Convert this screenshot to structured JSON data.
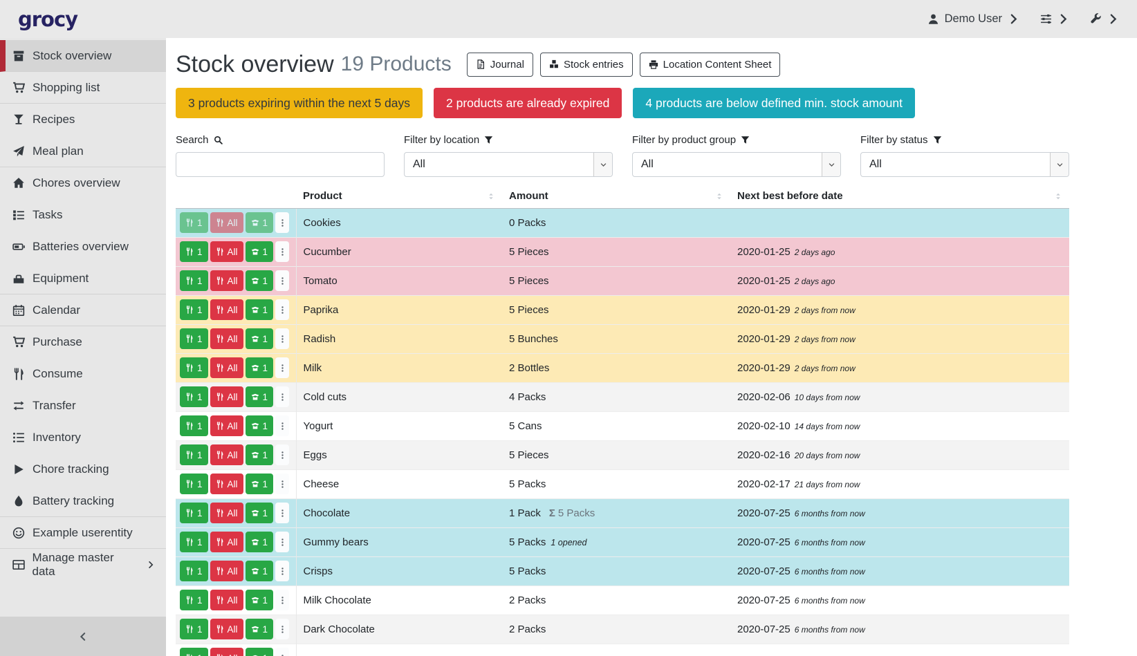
{
  "navbar": {
    "logo": "grocy",
    "user_label": "Demo User"
  },
  "sidebar": {
    "items": [
      {
        "label": "Stock overview",
        "icon": "box",
        "active": true,
        "divider_after": true
      },
      {
        "label": "Shopping list",
        "icon": "cart",
        "divider_after": true
      },
      {
        "label": "Recipes",
        "icon": "glass"
      },
      {
        "label": "Meal plan",
        "icon": "plane",
        "divider_after": true
      },
      {
        "label": "Chores overview",
        "icon": "home"
      },
      {
        "label": "Tasks",
        "icon": "tasks"
      },
      {
        "label": "Batteries overview",
        "icon": "battery"
      },
      {
        "label": "Equipment",
        "icon": "toolbox",
        "divider_after": true
      },
      {
        "label": "Calendar",
        "icon": "calendar",
        "divider_after": true
      },
      {
        "label": "Purchase",
        "icon": "cart"
      },
      {
        "label": "Consume",
        "icon": "utensils"
      },
      {
        "label": "Transfer",
        "icon": "exchange"
      },
      {
        "label": "Inventory",
        "icon": "list"
      },
      {
        "label": "Chore tracking",
        "icon": "play"
      },
      {
        "label": "Battery tracking",
        "icon": "tint",
        "divider_after": true
      },
      {
        "label": "Example userentity",
        "icon": "smile",
        "divider_after": true
      },
      {
        "label": "Manage master data",
        "icon": "table",
        "submenu": true
      }
    ]
  },
  "header": {
    "title": "Stock overview",
    "count_text": "19 Products",
    "buttons": [
      {
        "label": "Journal",
        "icon": "file"
      },
      {
        "label": "Stock entries",
        "icon": "cubes"
      },
      {
        "label": "Location Content Sheet",
        "icon": "print"
      }
    ]
  },
  "alerts": [
    {
      "text": "3 products expiring within the next 5 days",
      "color": "#efb50f"
    },
    {
      "text": "2 products are already expired",
      "color": "#dc3545"
    },
    {
      "text": "4 products are below defined min. stock amount",
      "color": "#1ba8ba"
    }
  ],
  "filters": {
    "search_label": "Search",
    "location_label": "Filter by location",
    "group_label": "Filter by product group",
    "status_label": "Filter by status",
    "all_value": "All",
    "search_value": ""
  },
  "table": {
    "headers": [
      "Product",
      "Amount",
      "Next best before date"
    ],
    "row_buttons": {
      "consume_one": "1",
      "consume_all": "All",
      "open_one": "1"
    },
    "sigma": "Σ",
    "rows": [
      {
        "product": "Cookies",
        "amount": "0 Packs",
        "amount_sum": "",
        "amount_note": "",
        "date": "",
        "timeago": "",
        "status": "belowmin",
        "muted": true
      },
      {
        "product": "Cucumber",
        "amount": "5 Pieces",
        "amount_sum": "",
        "amount_note": "",
        "date": "2020-01-25",
        "timeago": "2 days ago",
        "status": "expired",
        "muted": false
      },
      {
        "product": "Tomato",
        "amount": "5 Pieces",
        "amount_sum": "",
        "amount_note": "",
        "date": "2020-01-25",
        "timeago": "2 days ago",
        "status": "expired",
        "muted": false
      },
      {
        "product": "Paprika",
        "amount": "5 Pieces",
        "amount_sum": "",
        "amount_note": "",
        "date": "2020-01-29",
        "timeago": "2 days from now",
        "status": "expiring",
        "muted": false
      },
      {
        "product": "Radish",
        "amount": "5 Bunches",
        "amount_sum": "",
        "amount_note": "",
        "date": "2020-01-29",
        "timeago": "2 days from now",
        "status": "expiring",
        "muted": false
      },
      {
        "product": "Milk",
        "amount": "2 Bottles",
        "amount_sum": "",
        "amount_note": "",
        "date": "2020-01-29",
        "timeago": "2 days from now",
        "status": "expiring",
        "muted": false
      },
      {
        "product": "Cold cuts",
        "amount": "4 Packs",
        "amount_sum": "",
        "amount_note": "",
        "date": "2020-02-06",
        "timeago": "10 days from now",
        "status": "stripe",
        "muted": false
      },
      {
        "product": "Yogurt",
        "amount": "5 Cans",
        "amount_sum": "",
        "amount_note": "",
        "date": "2020-02-10",
        "timeago": "14 days from now",
        "status": "none",
        "muted": false
      },
      {
        "product": "Eggs",
        "amount": "5 Pieces",
        "amount_sum": "",
        "amount_note": "",
        "date": "2020-02-16",
        "timeago": "20 days from now",
        "status": "stripe",
        "muted": false
      },
      {
        "product": "Cheese",
        "amount": "5 Packs",
        "amount_sum": "",
        "amount_note": "",
        "date": "2020-02-17",
        "timeago": "21 days from now",
        "status": "none",
        "muted": false
      },
      {
        "product": "Chocolate",
        "amount": "1 Pack",
        "amount_sum": "5 Packs",
        "amount_note": "",
        "date": "2020-07-25",
        "timeago": "6 months from now",
        "status": "belowmin",
        "muted": false
      },
      {
        "product": "Gummy bears",
        "amount": "5 Packs",
        "amount_sum": "",
        "amount_note": "1 opened",
        "date": "2020-07-25",
        "timeago": "6 months from now",
        "status": "belowmin",
        "muted": false
      },
      {
        "product": "Crisps",
        "amount": "5 Packs",
        "amount_sum": "",
        "amount_note": "",
        "date": "2020-07-25",
        "timeago": "6 months from now",
        "status": "belowmin",
        "muted": false
      },
      {
        "product": "Milk Chocolate",
        "amount": "2 Packs",
        "amount_sum": "",
        "amount_note": "",
        "date": "2020-07-25",
        "timeago": "6 months from now",
        "status": "none",
        "muted": false
      },
      {
        "product": "Dark Chocolate",
        "amount": "2 Packs",
        "amount_sum": "",
        "amount_note": "",
        "date": "2020-07-25",
        "timeago": "6 months from now",
        "status": "stripe",
        "muted": false
      },
      {
        "product": "",
        "amount": "",
        "amount_sum": "",
        "amount_note": "",
        "date": "",
        "timeago": "",
        "status": "none",
        "muted": false
      }
    ]
  },
  "colors": {
    "accent_red": "#b02a37",
    "logo": "#262262",
    "alert_warning": "#efb50f",
    "alert_danger": "#dc3545",
    "alert_info": "#1ba8ba",
    "btn_green": "#28a745",
    "btn_red": "#dc3545",
    "row_belowmin": "#bce6ec",
    "row_expired": "#f3c7d1",
    "row_expiring": "#fdeab5"
  }
}
